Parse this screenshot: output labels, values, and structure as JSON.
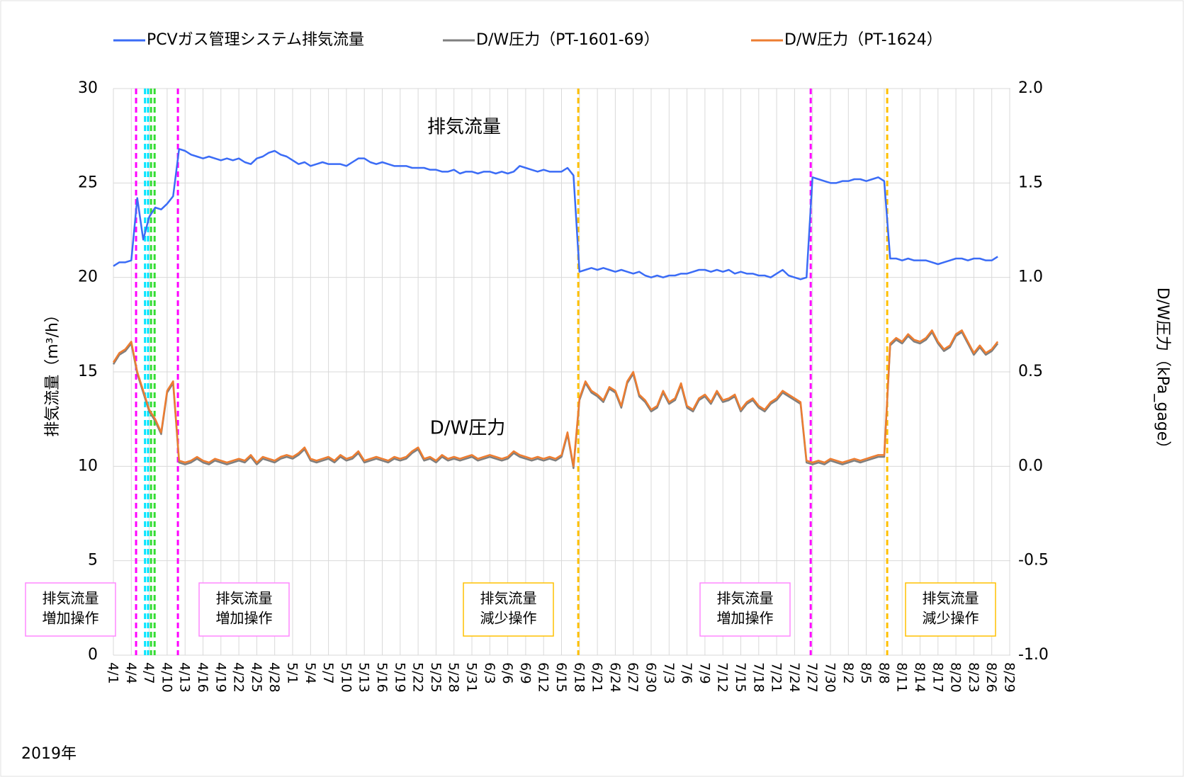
{
  "chart_data": {
    "type": "line",
    "year_label": "2019年",
    "ylabel": "排気流量（m³/h）",
    "y2label": "D/W圧力（kPa_gage）",
    "ylim": [
      0,
      30
    ],
    "yticks": [
      0,
      5,
      10,
      15,
      20,
      25,
      30
    ],
    "y2lim": [
      -1,
      2
    ],
    "y2ticks": [
      {
        "value": -1,
        "label": "-1.0"
      },
      -0.5,
      {
        "value": 0,
        "label": "0.0"
      },
      0.5,
      {
        "value": 1,
        "label": "1.0"
      },
      1.5,
      {
        "value": 2,
        "label": "2.0"
      }
    ],
    "grid": true,
    "legend": "top",
    "categories": [
      "4/1",
      null,
      null,
      "4/4",
      null,
      null,
      "4/7",
      null,
      null,
      "4/10",
      null,
      null,
      "4/13",
      null,
      null,
      "4/16",
      null,
      null,
      "4/19",
      null,
      null,
      "4/22",
      null,
      null,
      "4/25",
      null,
      null,
      "4/28",
      null,
      null,
      "5/1",
      null,
      null,
      "5/4",
      null,
      null,
      "5/7",
      null,
      null,
      "5/10",
      null,
      null,
      "5/13",
      null,
      null,
      "5/16",
      null,
      null,
      "5/19",
      null,
      null,
      "5/22",
      null,
      null,
      "5/25",
      null,
      null,
      "5/28",
      null,
      null,
      "5/31",
      null,
      null,
      "6/3",
      null,
      null,
      "6/6",
      null,
      null,
      "6/9",
      null,
      null,
      "6/12",
      null,
      null,
      "6/15",
      null,
      null,
      "6/18",
      null,
      null,
      "6/21",
      null,
      null,
      "6/24",
      null,
      null,
      "6/27",
      null,
      null,
      "6/30",
      null,
      null,
      "7/3",
      null,
      null,
      "7/6",
      null,
      null,
      "7/9",
      null,
      null,
      "7/12",
      null,
      null,
      "7/15",
      null,
      null,
      "7/18",
      null,
      null,
      "7/21",
      null,
      null,
      "7/24",
      null,
      null,
      "7/27",
      null,
      null,
      "7/30",
      null,
      null,
      "8/2",
      null,
      null,
      "8/5",
      null,
      null,
      "8/8",
      null,
      null,
      "8/11",
      null,
      null,
      "8/14",
      null,
      null,
      "8/17",
      null,
      null,
      "8/20",
      null,
      null,
      "8/23",
      null,
      null,
      "8/26",
      null,
      null,
      "8/29"
    ],
    "series": [
      {
        "name": "PCVガス管理システム排気流量",
        "color": "#3b6cf6",
        "axis": "y",
        "values": [
          20.6,
          20.8,
          20.8,
          20.9,
          24.2,
          22.0,
          23.2,
          23.7,
          23.6,
          23.9,
          24.3,
          26.8,
          26.7,
          26.5,
          26.4,
          26.3,
          26.4,
          26.3,
          26.2,
          26.3,
          26.2,
          26.3,
          26.1,
          26.0,
          26.3,
          26.4,
          26.6,
          26.7,
          26.5,
          26.4,
          26.2,
          26.0,
          26.1,
          25.9,
          26.0,
          26.1,
          26.0,
          26.0,
          26.0,
          25.9,
          26.1,
          26.3,
          26.3,
          26.1,
          26.0,
          26.1,
          26.0,
          25.9,
          25.9,
          25.9,
          25.8,
          25.8,
          25.8,
          25.7,
          25.7,
          25.6,
          25.6,
          25.7,
          25.5,
          25.6,
          25.6,
          25.5,
          25.6,
          25.6,
          25.5,
          25.6,
          25.5,
          25.6,
          25.9,
          25.8,
          25.7,
          25.6,
          25.7,
          25.6,
          25.6,
          25.6,
          25.8,
          25.4,
          20.3,
          20.4,
          20.5,
          20.4,
          20.5,
          20.4,
          20.3,
          20.4,
          20.3,
          20.2,
          20.3,
          20.1,
          20.0,
          20.1,
          20.0,
          20.1,
          20.1,
          20.2,
          20.2,
          20.3,
          20.4,
          20.4,
          20.3,
          20.4,
          20.3,
          20.4,
          20.2,
          20.3,
          20.2,
          20.2,
          20.1,
          20.1,
          20.0,
          20.2,
          20.4,
          20.1,
          20.0,
          19.9,
          20.0,
          25.3,
          25.2,
          25.1,
          25.0,
          25.0,
          25.1,
          25.1,
          25.2,
          25.2,
          25.1,
          25.2,
          25.3,
          25.1,
          21.0,
          21.0,
          20.9,
          21.0,
          20.9,
          20.9,
          20.9,
          20.8,
          20.7,
          20.8,
          20.9,
          21.0,
          21.0,
          20.9,
          21.0,
          21.0,
          20.9,
          20.9,
          21.1,
          null,
          null
        ]
      },
      {
        "name": "D/W圧力（PT-1601-69）",
        "color": "#7f7f7f",
        "axis": "y2",
        "values": [
          0.54,
          0.59,
          0.61,
          0.65,
          0.49,
          0.39,
          0.29,
          0.24,
          0.17,
          0.39,
          0.44,
          0.02,
          0.01,
          0.02,
          0.04,
          0.02,
          0.01,
          0.03,
          0.02,
          0.01,
          0.02,
          0.03,
          0.02,
          0.05,
          0.01,
          0.04,
          0.03,
          0.02,
          0.04,
          0.05,
          0.04,
          0.06,
          0.09,
          0.03,
          0.02,
          0.03,
          0.04,
          0.02,
          0.05,
          0.03,
          0.04,
          0.07,
          0.02,
          0.03,
          0.04,
          0.03,
          0.02,
          0.04,
          0.03,
          0.04,
          0.07,
          0.09,
          0.03,
          0.04,
          0.02,
          0.05,
          0.03,
          0.04,
          0.03,
          0.04,
          0.05,
          0.03,
          0.04,
          0.05,
          0.04,
          0.03,
          0.04,
          0.07,
          0.05,
          0.04,
          0.03,
          0.04,
          0.03,
          0.04,
          0.03,
          0.05,
          0.17,
          -0.01,
          0.35,
          0.44,
          0.39,
          0.37,
          0.34,
          0.41,
          0.39,
          0.31,
          0.44,
          0.49,
          0.37,
          0.34,
          0.29,
          0.31,
          0.39,
          0.33,
          0.35,
          0.43,
          0.31,
          0.29,
          0.35,
          0.37,
          0.33,
          0.39,
          0.34,
          0.35,
          0.37,
          0.29,
          0.33,
          0.35,
          0.31,
          0.29,
          0.33,
          0.35,
          0.39,
          0.37,
          0.35,
          0.33,
          0.02,
          0.01,
          0.02,
          0.01,
          0.03,
          0.02,
          0.01,
          0.02,
          0.03,
          0.02,
          0.03,
          0.04,
          0.05,
          0.05,
          0.64,
          0.67,
          0.65,
          0.69,
          0.66,
          0.65,
          0.67,
          0.71,
          0.65,
          0.61,
          0.63,
          0.69,
          0.71,
          0.65,
          0.59,
          0.63,
          0.59,
          0.61,
          0.65,
          null,
          null
        ]
      },
      {
        "name": "D/W圧力（PT-1624）",
        "color": "#ed7d31",
        "axis": "y2",
        "values": [
          0.55,
          0.6,
          0.62,
          0.66,
          0.5,
          0.4,
          0.3,
          0.25,
          0.18,
          0.4,
          0.45,
          0.03,
          0.02,
          0.03,
          0.05,
          0.03,
          0.02,
          0.04,
          0.03,
          0.02,
          0.03,
          0.04,
          0.03,
          0.06,
          0.02,
          0.05,
          0.04,
          0.03,
          0.05,
          0.06,
          0.05,
          0.07,
          0.1,
          0.04,
          0.03,
          0.04,
          0.05,
          0.03,
          0.06,
          0.04,
          0.05,
          0.08,
          0.03,
          0.04,
          0.05,
          0.04,
          0.03,
          0.05,
          0.04,
          0.05,
          0.08,
          0.1,
          0.04,
          0.05,
          0.03,
          0.06,
          0.04,
          0.05,
          0.04,
          0.05,
          0.06,
          0.04,
          0.05,
          0.06,
          0.05,
          0.04,
          0.05,
          0.08,
          0.06,
          0.05,
          0.04,
          0.05,
          0.04,
          0.05,
          0.04,
          0.06,
          0.18,
          0.0,
          0.36,
          0.45,
          0.4,
          0.38,
          0.35,
          0.42,
          0.4,
          0.32,
          0.45,
          0.5,
          0.38,
          0.35,
          0.3,
          0.32,
          0.4,
          0.34,
          0.36,
          0.44,
          0.32,
          0.3,
          0.36,
          0.38,
          0.34,
          0.4,
          0.35,
          0.36,
          0.38,
          0.3,
          0.34,
          0.36,
          0.32,
          0.3,
          0.34,
          0.36,
          0.4,
          0.38,
          0.36,
          0.34,
          0.03,
          0.02,
          0.03,
          0.02,
          0.04,
          0.03,
          0.02,
          0.03,
          0.04,
          0.03,
          0.04,
          0.05,
          0.06,
          0.06,
          0.65,
          0.68,
          0.66,
          0.7,
          0.67,
          0.66,
          0.68,
          0.72,
          0.66,
          0.62,
          0.64,
          0.7,
          0.72,
          0.66,
          0.6,
          0.64,
          0.6,
          0.62,
          0.66,
          null,
          null
        ]
      }
    ],
    "series_labels": [
      {
        "text": "排気流量"
      },
      {
        "text": "D/W圧力"
      }
    ],
    "event_lines": [
      {
        "x": 3.8,
        "color": "#ff00ff"
      },
      {
        "x": 5.3,
        "color": "#00e5ff"
      },
      {
        "x": 5.8,
        "color": "#00e5ff"
      },
      {
        "x": 6.3,
        "color": "#33dd33"
      },
      {
        "x": 6.9,
        "color": "#33dd33"
      },
      {
        "x": 10.8,
        "color": "#ff00ff"
      },
      {
        "x": 77.8,
        "color": "#ffc000"
      },
      {
        "x": 116.7,
        "color": "#ff00ff"
      },
      {
        "x": 129.5,
        "color": "#ffc000"
      }
    ],
    "annotations": [
      {
        "lines": [
          "排気流量",
          "増加操作"
        ],
        "color": "#ff88ff"
      },
      {
        "lines": [
          "排気流量",
          "増加操作"
        ],
        "color": "#ff88ff"
      },
      {
        "lines": [
          "排気流量",
          "減少操作"
        ],
        "color": "#ffc000"
      },
      {
        "lines": [
          "排気流量",
          "増加操作"
        ],
        "color": "#ff88ff"
      },
      {
        "lines": [
          "排気流量",
          "減少操作"
        ],
        "color": "#ffc000"
      }
    ]
  }
}
